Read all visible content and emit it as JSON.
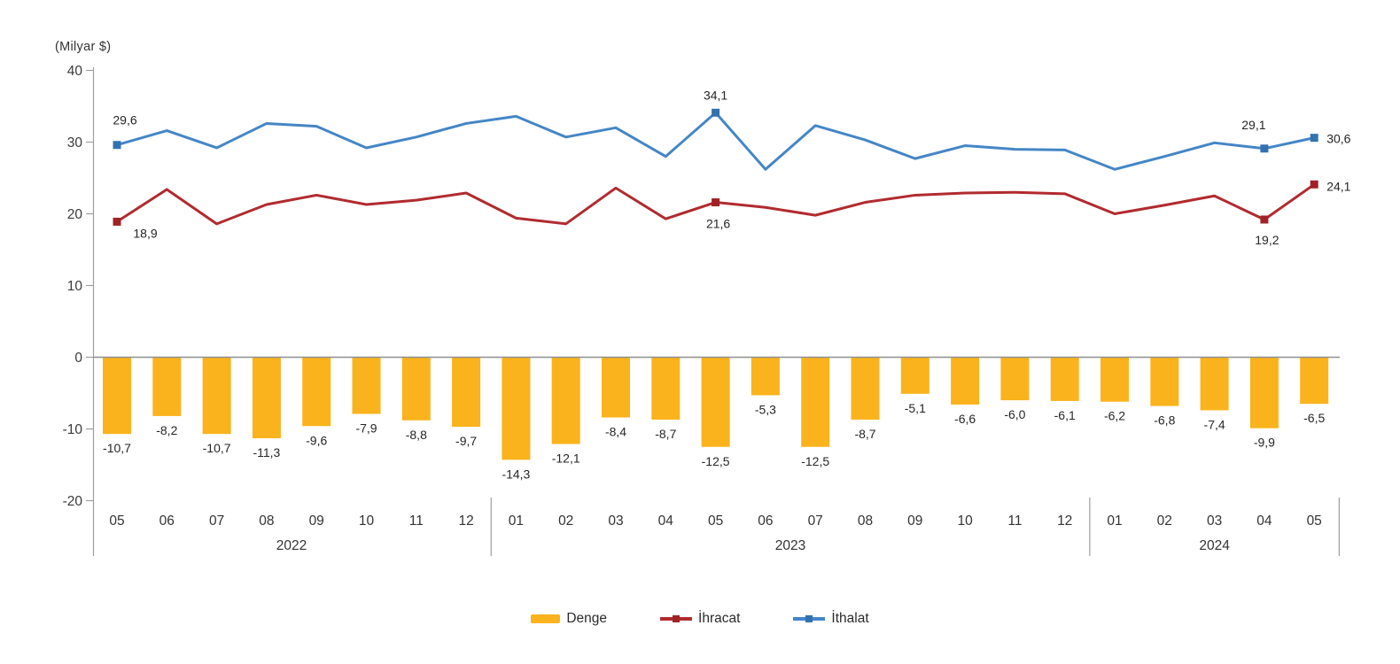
{
  "unit_label": "(Milyar $)",
  "legend": {
    "items": [
      {
        "label": "Denge"
      },
      {
        "label": "İhracat"
      },
      {
        "label": "İthalat"
      }
    ]
  },
  "colors": {
    "bar": "#FAB31C",
    "ihracat_line": "#B12B2F",
    "ihracat_marker": "#A02226",
    "ithalat_line": "#4486C6",
    "ithalat_marker": "#3272B0",
    "axis": "#9E9E9E",
    "zero_line": "#8F8F8F",
    "tick_text": "#3A3A3A",
    "label_text": "#262626"
  },
  "chart_data": {
    "type": "bar+line combo",
    "title": "",
    "ylabel": "(Milyar $)",
    "ylim": [
      -20,
      40
    ],
    "yticks": [
      40,
      30,
      20,
      10,
      0,
      -10,
      -20
    ],
    "grid": false,
    "legend_position": "bottom",
    "months": [
      "05",
      "06",
      "07",
      "08",
      "09",
      "10",
      "11",
      "12",
      "01",
      "02",
      "03",
      "04",
      "05",
      "06",
      "07",
      "08",
      "09",
      "10",
      "11",
      "12",
      "01",
      "02",
      "03",
      "04",
      "05"
    ],
    "year_groups": [
      {
        "label": "2022",
        "start": 0,
        "end": 7
      },
      {
        "label": "2023",
        "start": 8,
        "end": 19
      },
      {
        "label": "2024",
        "start": 20,
        "end": 24
      }
    ],
    "series": [
      {
        "name": "Denge",
        "type": "bar",
        "color": "#FAB31C",
        "values": [
          -10.7,
          -8.2,
          -10.7,
          -11.3,
          -9.6,
          -7.9,
          -8.8,
          -9.7,
          -14.3,
          -12.1,
          -8.4,
          -8.7,
          -12.5,
          -5.3,
          -12.5,
          -8.7,
          -5.1,
          -6.6,
          -6.0,
          -6.1,
          -6.2,
          -6.8,
          -7.4,
          -9.9,
          -6.5
        ],
        "labels_all": true
      },
      {
        "name": "İhracat",
        "type": "line",
        "color": "#B12B2F",
        "marker_color": "#A02226",
        "values": [
          18.9,
          23.4,
          18.6,
          21.3,
          22.6,
          21.3,
          21.9,
          22.9,
          19.4,
          18.6,
          23.6,
          19.3,
          21.6,
          20.9,
          19.8,
          21.6,
          22.6,
          22.9,
          23.0,
          22.8,
          20.0,
          21.2,
          22.5,
          19.2,
          24.1
        ],
        "labeled_indexes": [
          0,
          12,
          23,
          24
        ],
        "labeled_values": [
          "18,9",
          "21,6",
          "19,2",
          "24,1"
        ]
      },
      {
        "name": "İthalat",
        "type": "line",
        "color": "#4486C6",
        "marker_color": "#3272B0",
        "values": [
          29.6,
          31.6,
          29.2,
          32.6,
          32.2,
          29.2,
          30.7,
          32.6,
          33.6,
          30.7,
          32.0,
          28.0,
          34.1,
          26.2,
          32.3,
          30.3,
          27.7,
          29.5,
          29.0,
          28.9,
          26.2,
          28.0,
          29.9,
          29.1,
          30.6
        ],
        "labeled_indexes": [
          0,
          12,
          23,
          24
        ],
        "labeled_values": [
          "29,6",
          "34,1",
          "29,1",
          "30,6"
        ]
      }
    ],
    "decimal_separator": ","
  }
}
